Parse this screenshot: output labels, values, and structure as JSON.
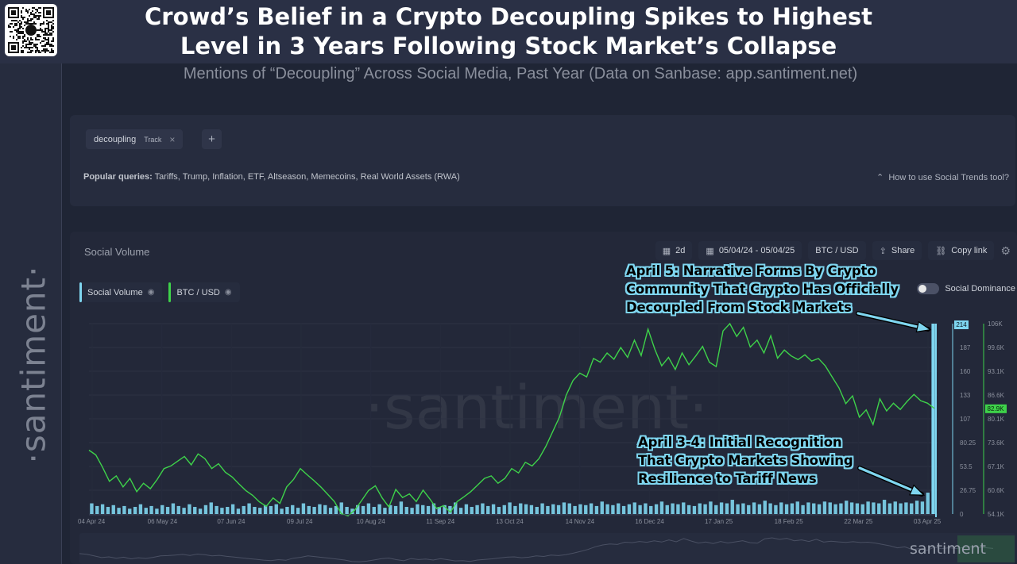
{
  "header": {
    "title_line1": "Crowd’s Belief in a Crypto Decoupling Spikes to Highest",
    "title_line2": "Level in 3 Years Following Stock Market’s Collapse",
    "subtitle": "Mentions of “Decoupling” Across Social Media, Past Year (Data on Sanbase: app.santiment.net)"
  },
  "brand": {
    "vertical_logo": "·santiment·",
    "watermark": "·santiment·",
    "minimap_logo": "santiment"
  },
  "query": {
    "term": "decoupling",
    "track_label": "Track",
    "remove_glyph": "×",
    "add_glyph": "+",
    "popular_label": "Popular queries:",
    "popular_items": "Tariffs, Trump, Inflation, ETF, Altseason, Memecoins, Real World Assets (RWA)",
    "howto": "How to use Social Trends tool?"
  },
  "panel": {
    "title": "Social Volume",
    "interval": "2d",
    "date_range": "05/04/24 - 05/04/25",
    "pair": "BTC / USD",
    "share": "Share",
    "copy_link": "Copy link",
    "dominance_label": "Social Dominance"
  },
  "legend": {
    "social_volume": "Social Volume",
    "btc_usd": "BTC / USD"
  },
  "annotations": {
    "a1": [
      "April 5: Narrative Forms By Crypto",
      "Community That Crypto Has Officially",
      "Decoupled From Stock Markets"
    ],
    "a2": [
      "April 3-4: Initial Recognition",
      "That Crypto Markets Showing",
      "Resilience to Tariff News"
    ]
  },
  "colors": {
    "social_volume": "#7fd6f0",
    "btc_usd": "#3ed24a",
    "callout": "#7fd6f0",
    "background": "#1f2535"
  },
  "chart_data": {
    "type": "bar",
    "x_ticks": [
      "04 Apr 24",
      "06 May 24",
      "07 Jun 24",
      "09 Jul 24",
      "10 Aug 24",
      "11 Sep 24",
      "13 Oct 24",
      "14 Nov 24",
      "16 Dec 24",
      "17 Jan 25",
      "18 Feb 25",
      "22 Mar 25",
      "03 Apr 25"
    ],
    "x_range": [
      "2024-04-04",
      "2025-04-05"
    ],
    "social_axis": {
      "ticks": [
        "0",
        "26.75",
        "53.5",
        "80.25",
        "107",
        "133",
        "160",
        "187",
        "214"
      ],
      "ylim": [
        0,
        214
      ],
      "current_value": "214"
    },
    "btc_axis": {
      "ticks": [
        "54.1K",
        "60.6K",
        "67.1K",
        "73.6K",
        "80.1K",
        "86.6K",
        "93.1K",
        "99.6K",
        "106K"
      ],
      "ylim": [
        54100,
        106000
      ],
      "current_value": "82.9K"
    },
    "series": [
      {
        "name": "Social Volume",
        "type": "bar",
        "values": [
          12,
          9,
          11,
          8,
          10,
          7,
          9,
          6,
          8,
          11,
          7,
          9,
          6,
          10,
          8,
          12,
          9,
          7,
          11,
          8,
          6,
          10,
          13,
          9,
          7,
          8,
          11,
          6,
          9,
          12,
          8,
          7,
          10,
          9,
          11,
          6,
          8,
          10,
          7,
          12,
          9,
          8,
          11,
          10,
          7,
          9,
          13,
          8,
          6,
          10,
          9,
          12,
          8,
          11,
          7,
          10,
          9,
          14,
          8,
          7,
          11,
          10,
          9,
          12,
          8,
          10,
          9,
          13,
          7,
          11,
          8,
          10,
          12,
          9,
          11,
          8,
          10,
          13,
          9,
          12,
          11,
          10,
          8,
          12,
          9,
          11,
          10,
          13,
          12,
          9,
          11,
          10,
          12,
          9,
          14,
          11,
          10,
          12,
          9,
          11,
          13,
          10,
          12,
          9,
          11,
          14,
          10,
          12,
          11,
          13,
          10,
          9,
          12,
          11,
          14,
          10,
          13,
          12,
          16,
          11,
          12,
          10,
          13,
          11,
          15,
          12,
          10,
          13,
          11,
          12,
          14,
          10,
          13,
          12,
          11,
          14,
          13,
          11,
          12,
          15,
          13,
          12,
          11,
          14,
          13,
          12,
          16,
          12,
          14,
          12,
          13,
          12,
          15,
          14,
          24,
          214
        ]
      },
      {
        "name": "BTC / USD",
        "type": "line",
        "values": [
          71500,
          70200,
          66800,
          63000,
          64500,
          61500,
          63800,
          60200,
          62500,
          61000,
          63500,
          66500,
          67200,
          68500,
          69800,
          67500,
          70500,
          69200,
          66500,
          67800,
          65500,
          64200,
          62300,
          60500,
          59200,
          57400,
          56200,
          58500,
          57000,
          61500,
          63500,
          66500,
          64800,
          63200,
          61500,
          59500,
          57500,
          54200,
          53600,
          55200,
          57800,
          60500,
          61800,
          58500,
          56000,
          60800,
          58600,
          59600,
          57500,
          60600,
          58200,
          55600,
          56400,
          54600,
          57500,
          58800,
          60200,
          62000,
          63800,
          64500,
          62500,
          63800,
          66500,
          65300,
          68200,
          67200,
          69200,
          72500,
          76500,
          80500,
          86500,
          90500,
          92500,
          91500,
          96500,
          95500,
          98000,
          96300,
          99500,
          96800,
          101500,
          97300,
          104500,
          99000,
          94500,
          96800,
          93500,
          98000,
          94800,
          97200,
          99800,
          95500,
          94300,
          104000,
          106000,
          102500,
          105000,
          99600,
          101500,
          98000,
          102700,
          96600,
          98800,
          97200,
          96200,
          97500,
          95800,
          96500,
          94500,
          91500,
          88500,
          84200,
          86300,
          80500,
          82500,
          78500,
          85500,
          82200,
          84300,
          82600,
          84800,
          86700,
          85000,
          84300,
          82900
        ]
      }
    ]
  }
}
